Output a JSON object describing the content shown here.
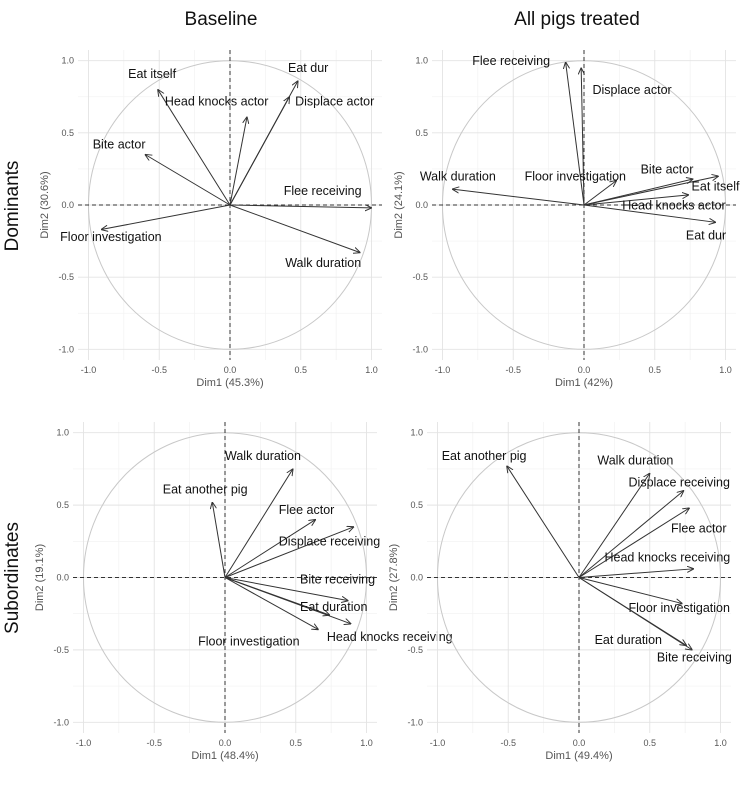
{
  "figure": {
    "col_titles": [
      "Baseline",
      "All pigs treated"
    ],
    "row_titles": [
      "Dominants",
      "Subordinates"
    ]
  },
  "chart_data": [
    {
      "type": "scatter",
      "id": "dominants-baseline",
      "title": "",
      "xlabel": "Dim1 (45.3%)",
      "ylabel": "Dim2 (30.6%)",
      "xlim": [
        -1.0,
        1.0
      ],
      "ylim": [
        -1.0,
        1.0
      ],
      "xticks": [
        "-1.0",
        "-0.5",
        "0.0",
        "0.5",
        "1.0"
      ],
      "yticks": [
        "-1.0",
        "-0.5",
        "0.0",
        "0.5",
        "1.0"
      ],
      "vectors": [
        {
          "label": "Eat itself",
          "x": -0.51,
          "y": 0.8,
          "lx": -0.72,
          "ly": 0.88
        },
        {
          "label": "Head knocks actor",
          "x": 0.12,
          "y": 0.61,
          "lx": -0.46,
          "ly": 0.69
        },
        {
          "label": "Eat dur",
          "x": 0.48,
          "y": 0.86,
          "lx": 0.41,
          "ly": 0.92
        },
        {
          "label": "Displace actor",
          "x": 0.42,
          "y": 0.75,
          "lx": 0.46,
          "ly": 0.69
        },
        {
          "label": "Bite actor",
          "x": -0.6,
          "y": 0.35,
          "lx": -0.97,
          "ly": 0.39
        },
        {
          "label": "Flee receiving",
          "x": 1.0,
          "y": -0.02,
          "lx": 0.38,
          "ly": 0.07
        },
        {
          "label": "Floor investigation",
          "x": -0.91,
          "y": -0.17,
          "lx": -1.2,
          "ly": -0.25
        },
        {
          "label": "Walk duration",
          "x": 0.92,
          "y": -0.33,
          "lx": 0.39,
          "ly": -0.43
        }
      ]
    },
    {
      "type": "scatter",
      "id": "dominants-treated",
      "title": "",
      "xlabel": "Dim1 (42%)",
      "ylabel": "Dim2 (24.1%)",
      "xlim": [
        -1.0,
        1.0
      ],
      "ylim": [
        -1.0,
        1.0
      ],
      "xticks": [
        "-1.0",
        "-0.5",
        "0.0",
        "0.5",
        "1.0"
      ],
      "yticks": [
        "-1.0",
        "-0.5",
        "0.0",
        "0.5",
        "1.0"
      ],
      "vectors": [
        {
          "label": "Flee receiving",
          "x": -0.13,
          "y": 0.99,
          "lx": -0.79,
          "ly": 0.97
        },
        {
          "label": "Displace actor",
          "x": -0.02,
          "y": 0.95,
          "lx": 0.06,
          "ly": 0.77
        },
        {
          "label": "Walk duration",
          "x": -0.93,
          "y": 0.11,
          "lx": -1.16,
          "ly": 0.17
        },
        {
          "label": "Floor investigation",
          "x": 0.23,
          "y": 0.17,
          "lx": -0.42,
          "ly": 0.17
        },
        {
          "label": "Bite actor",
          "x": 0.77,
          "y": 0.18,
          "lx": 0.4,
          "ly": 0.22
        },
        {
          "label": "Eat itself",
          "x": 0.95,
          "y": 0.2,
          "lx": 0.76,
          "ly": 0.1
        },
        {
          "label": "Head knocks actor",
          "x": 0.74,
          "y": 0.07,
          "lx": 0.27,
          "ly": -0.03
        },
        {
          "label": "Eat dur",
          "x": 0.93,
          "y": -0.12,
          "lx": 0.72,
          "ly": -0.24
        }
      ]
    },
    {
      "type": "scatter",
      "id": "subordinates-baseline",
      "title": "",
      "xlabel": "Dim1 (48.4%)",
      "ylabel": "Dim2 (19.1%)",
      "xlim": [
        -1.0,
        1.0
      ],
      "ylim": [
        -1.0,
        1.0
      ],
      "xticks": [
        "-1.0",
        "-0.5",
        "0.0",
        "0.5",
        "1.0"
      ],
      "yticks": [
        "-1.0",
        "-0.5",
        "0.0",
        "0.5",
        "1.0"
      ],
      "vectors": [
        {
          "label": "Walk duration",
          "x": 0.48,
          "y": 0.75,
          "lx": 0.0,
          "ly": 0.81
        },
        {
          "label": "Eat another pig",
          "x": -0.09,
          "y": 0.52,
          "lx": -0.44,
          "ly": 0.58
        },
        {
          "label": "Flee actor",
          "x": 0.64,
          "y": 0.4,
          "lx": 0.38,
          "ly": 0.44
        },
        {
          "label": "Displace receiving",
          "x": 0.91,
          "y": 0.35,
          "lx": 0.38,
          "ly": 0.22
        },
        {
          "label": "Bite receiving",
          "x": 0.87,
          "y": -0.16,
          "lx": 0.53,
          "ly": -0.04
        },
        {
          "label": "Eat duration",
          "x": 0.74,
          "y": -0.26,
          "lx": 0.53,
          "ly": -0.23
        },
        {
          "label": "Head knocks receiving",
          "x": 0.89,
          "y": -0.32,
          "lx": 0.72,
          "ly": -0.44
        },
        {
          "label": "Floor investigation",
          "x": 0.66,
          "y": -0.36,
          "lx": -0.19,
          "ly": -0.47
        }
      ]
    },
    {
      "type": "scatter",
      "id": "subordinates-treated",
      "title": "",
      "xlabel": "Dim1 (49.4%)",
      "ylabel": "Dim2 (27.8%)",
      "xlim": [
        -1.0,
        1.0
      ],
      "ylim": [
        -1.0,
        1.0
      ],
      "xticks": [
        "-1.0",
        "-0.5",
        "0.0",
        "0.5",
        "1.0"
      ],
      "yticks": [
        "-1.0",
        "-0.5",
        "0.0",
        "0.5",
        "1.0"
      ],
      "vectors": [
        {
          "label": "Eat another pig",
          "x": -0.51,
          "y": 0.77,
          "lx": -0.97,
          "ly": 0.81
        },
        {
          "label": "Walk duration",
          "x": 0.5,
          "y": 0.72,
          "lx": 0.13,
          "ly": 0.78
        },
        {
          "label": "Displace receiving",
          "x": 0.74,
          "y": 0.6,
          "lx": 0.35,
          "ly": 0.63
        },
        {
          "label": "Flee actor",
          "x": 0.78,
          "y": 0.48,
          "lx": 0.65,
          "ly": 0.31
        },
        {
          "label": "Head knocks receiving",
          "x": 0.81,
          "y": 0.06,
          "lx": 0.18,
          "ly": 0.11
        },
        {
          "label": "Floor investigation",
          "x": 0.73,
          "y": -0.18,
          "lx": 0.35,
          "ly": -0.24
        },
        {
          "label": "Eat duration",
          "x": 0.76,
          "y": -0.47,
          "lx": 0.11,
          "ly": -0.46
        },
        {
          "label": "Bite receiving",
          "x": 0.8,
          "y": -0.5,
          "lx": 0.55,
          "ly": -0.58
        }
      ]
    }
  ]
}
